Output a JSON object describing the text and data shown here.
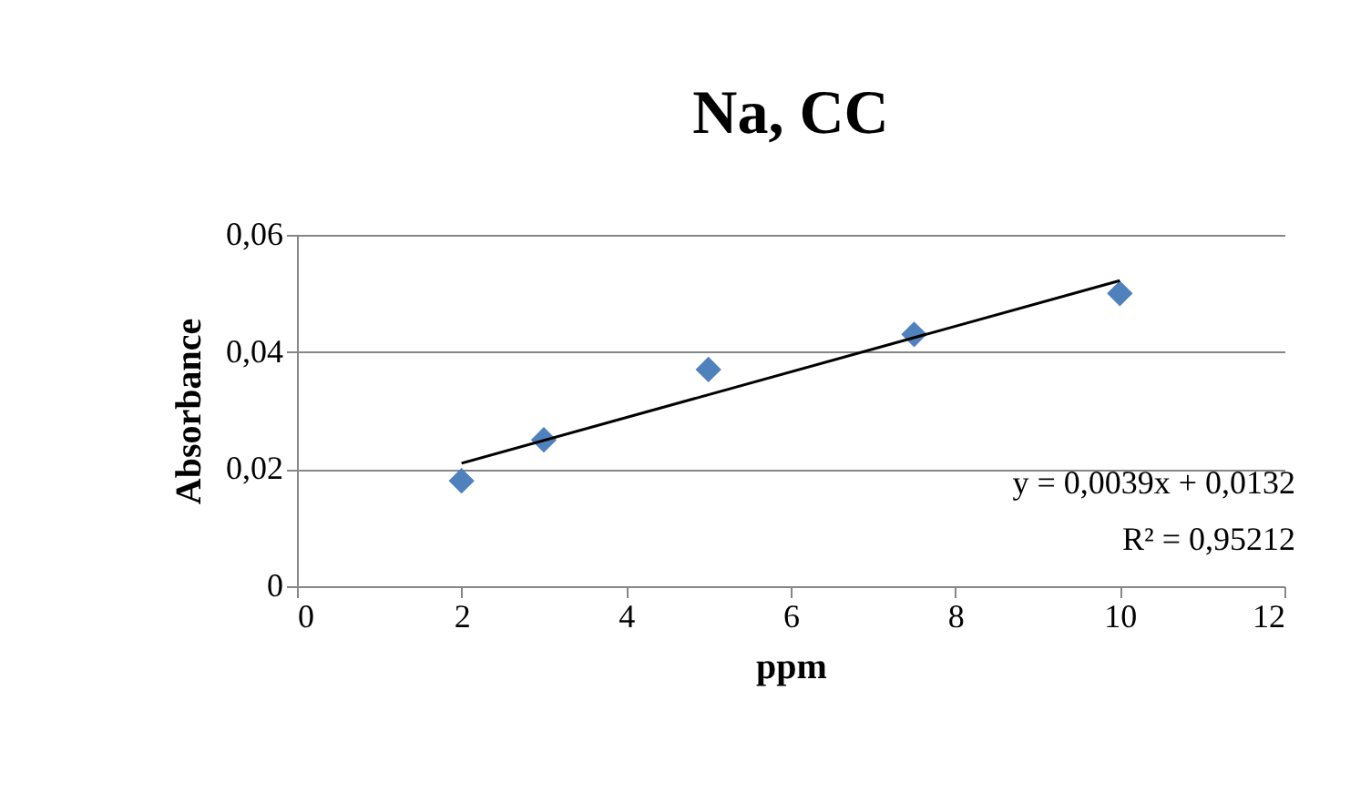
{
  "chart_data": {
    "type": "scatter",
    "title": "Na, CC",
    "xlabel": "ppm",
    "ylabel": "Absorbance",
    "x": [
      2,
      3,
      5,
      7.5,
      10
    ],
    "series": [
      {
        "color": "#4f81bd",
        "values": [
          0.018,
          0.025,
          0.037,
          0.043,
          0.05
        ]
      },
      {
        "type": "line",
        "marker": "none",
        "color": "#000000",
        "x": [
          2,
          10
        ],
        "values": [
          0.021,
          0.0522
        ]
      }
    ],
    "xlim": [
      0,
      12
    ],
    "xticks": [
      0,
      2,
      4,
      6,
      8,
      10,
      12
    ],
    "ylim": [
      0,
      0.06
    ],
    "yticks": [
      0,
      {
        "value": 0.02,
        "label": "0,02"
      },
      {
        "value": 0.04,
        "label": "0,04"
      },
      {
        "value": 0.06,
        "label": "0,06"
      }
    ],
    "grid": "y",
    "marker": "diamond",
    "annotations": [
      "y = 0,0039x + 0,0132",
      "R² = 0,95212"
    ]
  }
}
